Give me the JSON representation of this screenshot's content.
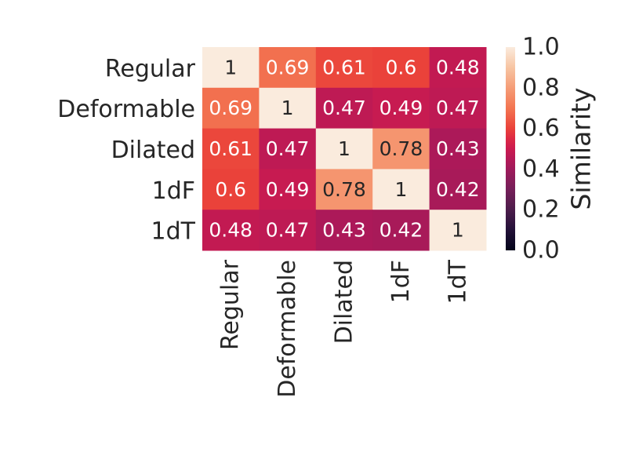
{
  "chart_data": {
    "type": "heatmap",
    "title": "",
    "xlabel": "",
    "ylabel": "",
    "rows": [
      "Regular",
      "Deformable",
      "Dilated",
      "1dF",
      "1dT"
    ],
    "cols": [
      "Regular",
      "Deformable",
      "Dilated",
      "1dF",
      "1dT"
    ],
    "values": [
      [
        1,
        0.69,
        0.61,
        0.6,
        0.48
      ],
      [
        0.69,
        1,
        0.47,
        0.49,
        0.47
      ],
      [
        0.61,
        0.47,
        1,
        0.78,
        0.43
      ],
      [
        0.6,
        0.49,
        0.78,
        1,
        0.42
      ],
      [
        0.48,
        0.47,
        0.43,
        0.42,
        1
      ]
    ],
    "cell_labels": [
      [
        "1",
        "0.69",
        "0.61",
        "0.6",
        "0.48"
      ],
      [
        "0.69",
        "1",
        "0.47",
        "0.49",
        "0.47"
      ],
      [
        "0.61",
        "0.47",
        "1",
        "0.78",
        "0.43"
      ],
      [
        "0.6",
        "0.49",
        "0.78",
        "1",
        "0.42"
      ],
      [
        "0.48",
        "0.47",
        "0.43",
        "0.42",
        "1"
      ]
    ],
    "colorbar": {
      "label": "Similarity",
      "range": [
        0.0,
        1.0
      ],
      "ticks": [
        0.0,
        0.2,
        0.4,
        0.6,
        0.8,
        1.0
      ],
      "tick_labels": [
        "0.0",
        "0.2",
        "0.4",
        "0.6",
        "0.8",
        "1.0"
      ],
      "colormap": "rocket"
    },
    "grid": false,
    "legend": "colorbar right"
  }
}
